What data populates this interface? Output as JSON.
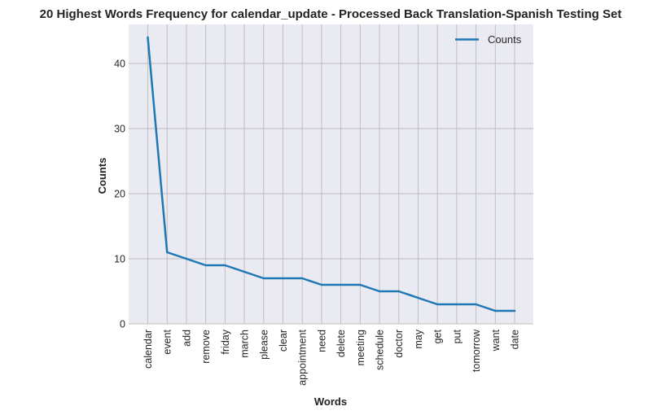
{
  "chart_data": {
    "type": "line",
    "title": "20 Highest Words Frequency for calendar_update - Processed Back Translation-Spanish Testing Set",
    "xlabel": "Words",
    "ylabel": "Counts",
    "categories": [
      "calendar",
      "event",
      "add",
      "remove",
      "friday",
      "march",
      "please",
      "clear",
      "appointment",
      "need",
      "delete",
      "meeting",
      "schedule",
      "doctor",
      "may",
      "get",
      "put",
      "tomorrow",
      "want",
      "date"
    ],
    "series": [
      {
        "name": "Counts",
        "values": [
          44,
          11,
          10,
          9,
          9,
          8,
          7,
          7,
          7,
          6,
          6,
          6,
          5,
          5,
          4,
          3,
          3,
          3,
          2,
          2
        ]
      }
    ],
    "ylim": [
      0,
      46
    ],
    "yticks": [
      0,
      10,
      20,
      30,
      40
    ],
    "grid": true,
    "legend": "top-right",
    "colors": {
      "line": "#1f77b4",
      "plot_background": "#eaeaf2",
      "grid": "#bfbfbf"
    }
  }
}
